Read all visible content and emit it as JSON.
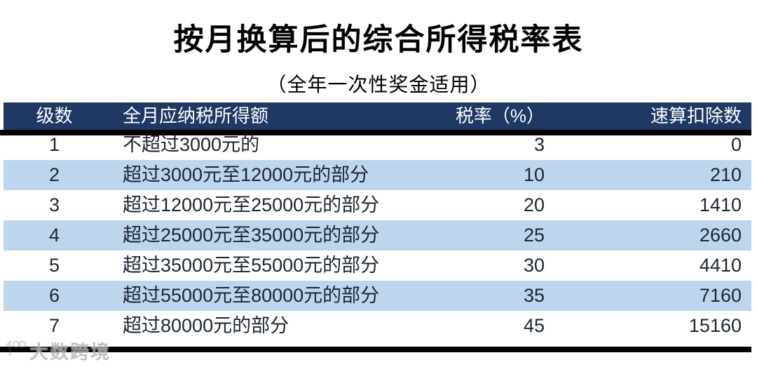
{
  "page": {
    "title": "按月换算后的综合所得税率表",
    "subtitle": "（全年一次性奖金适用）"
  },
  "table": {
    "columns": [
      "级数",
      "全月应纳税所得额",
      "税率（%）",
      "速算扣除数"
    ],
    "rows": [
      {
        "level": "1",
        "income": "不超过3000元的",
        "rate": "3",
        "deduction": "0"
      },
      {
        "level": "2",
        "income": "超过3000元至12000元的部分",
        "rate": "10",
        "deduction": "210"
      },
      {
        "level": "3",
        "income": "超过12000元至25000元的部分",
        "rate": "20",
        "deduction": "1410"
      },
      {
        "level": "4",
        "income": "超过25000元至35000元的部分",
        "rate": "25",
        "deduction": "2660"
      },
      {
        "level": "5",
        "income": "超过35000元至55000元的部分",
        "rate": "30",
        "deduction": "4410"
      },
      {
        "level": "6",
        "income": "超过55000元至80000元的部分",
        "rate": "35",
        "deduction": "7160"
      },
      {
        "level": "7",
        "income": "超过80000元的部分",
        "rate": "45",
        "deduction": "15160"
      }
    ]
  },
  "watermark": {
    "text": "大数跨境"
  },
  "colors": {
    "header_bg": "#1F3864",
    "row_alt_bg": "#BDD6EE",
    "line": "#000000",
    "header_text": "#FFFFFF",
    "body_text": "#1D2433"
  },
  "chart_data": {
    "type": "table",
    "title": "按月换算后的综合所得税率表",
    "subtitle": "（全年一次性奖金适用）",
    "columns": [
      "级数",
      "全月应纳税所得额",
      "税率（%）",
      "速算扣除数"
    ],
    "rows": [
      [
        1,
        "不超过3000元的",
        3,
        0
      ],
      [
        2,
        "超过3000元至12000元的部分",
        10,
        210
      ],
      [
        3,
        "超过12000元至25000元的部分",
        20,
        1410
      ],
      [
        4,
        "超过25000元至35000元的部分",
        25,
        2660
      ],
      [
        5,
        "超过35000元至55000元的部分",
        30,
        4410
      ],
      [
        6,
        "超过55000元至80000元的部分",
        35,
        7160
      ],
      [
        7,
        "超过80000元的部分",
        45,
        15160
      ]
    ]
  }
}
